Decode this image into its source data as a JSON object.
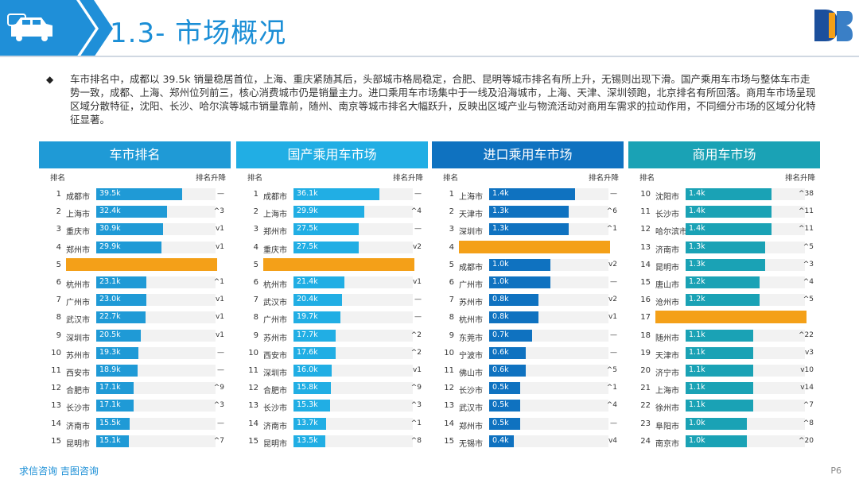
{
  "header": {
    "title": "1.3- 市场概况"
  },
  "summary": {
    "text": "车市排名中，成都以 39.5k 销量稳居首位，上海、重庆紧随其后，头部城市格局稳定，合肥、昆明等城市排名有所上升，无锡则出现下滑。国产乘用车市场与整体车市走势一致，成都、上海、郑州位列前三，核心消费城市仍是销量主力。进口乘用车市场集中于一线及沿海城市，上海、天津、深圳领跑，北京排名有所回落。商用车市场呈现区域分散特征，沈阳、长沙、哈尔滨等城市销量靠前，随州、南京等城市排名大幅跃升，反映出区域产业与物流活动对商用车需求的拉动作用，不同细分市场的区域分化特征显著。"
  },
  "panels": [
    {
      "title": "车市排名",
      "color": "#1f9ad6",
      "col_rank": "排名",
      "col_change": "排名升降",
      "rows": [
        {
          "rank": "1",
          "city": "成都市",
          "value": "39.5k",
          "v": 39.5,
          "change": "—"
        },
        {
          "rank": "2",
          "city": "上海市",
          "value": "32.4k",
          "v": 32.4,
          "change": "^3"
        },
        {
          "rank": "3",
          "city": "重庆市",
          "value": "30.9k",
          "v": 30.9,
          "change": "v1"
        },
        {
          "rank": "4",
          "city": "郑州市",
          "value": "29.9k",
          "v": 29.9,
          "change": "v1"
        },
        {
          "rank": "5",
          "highlight": true
        },
        {
          "rank": "6",
          "city": "杭州市",
          "value": "23.1k",
          "v": 23.1,
          "change": "^1"
        },
        {
          "rank": "7",
          "city": "广州市",
          "value": "23.0k",
          "v": 23.0,
          "change": "v1"
        },
        {
          "rank": "8",
          "city": "武汉市",
          "value": "22.7k",
          "v": 22.7,
          "change": "v1"
        },
        {
          "rank": "9",
          "city": "深圳市",
          "value": "20.5k",
          "v": 20.5,
          "change": "v1"
        },
        {
          "rank": "10",
          "city": "苏州市",
          "value": "19.3k",
          "v": 19.3,
          "change": "—"
        },
        {
          "rank": "11",
          "city": "西安市",
          "value": "18.9k",
          "v": 18.9,
          "change": "—"
        },
        {
          "rank": "12",
          "city": "合肥市",
          "value": "17.1k",
          "v": 17.1,
          "change": "^9"
        },
        {
          "rank": "13",
          "city": "长沙市",
          "value": "17.1k",
          "v": 17.1,
          "change": "^3"
        },
        {
          "rank": "14",
          "city": "济南市",
          "value": "15.5k",
          "v": 15.5,
          "change": "—"
        },
        {
          "rank": "15",
          "city": "昆明市",
          "value": "15.1k",
          "v": 15.1,
          "change": "^7"
        }
      ]
    },
    {
      "title": "国产乘用车市场",
      "color": "#21aee4",
      "col_rank": "排名",
      "col_change": "排名升降",
      "rows": [
        {
          "rank": "1",
          "city": "成都市",
          "value": "36.1k",
          "v": 36.1,
          "change": "—"
        },
        {
          "rank": "2",
          "city": "上海市",
          "value": "29.9k",
          "v": 29.9,
          "change": "^4"
        },
        {
          "rank": "3",
          "city": "郑州市",
          "value": "27.5k",
          "v": 27.5,
          "change": "—"
        },
        {
          "rank": "4",
          "city": "重庆市",
          "value": "27.5k",
          "v": 27.5,
          "change": "v2"
        },
        {
          "rank": "5",
          "highlight": true
        },
        {
          "rank": "6",
          "city": "杭州市",
          "value": "21.4k",
          "v": 21.4,
          "change": "v1"
        },
        {
          "rank": "7",
          "city": "武汉市",
          "value": "20.4k",
          "v": 20.4,
          "change": "—"
        },
        {
          "rank": "8",
          "city": "广州市",
          "value": "19.7k",
          "v": 19.7,
          "change": "—"
        },
        {
          "rank": "9",
          "city": "苏州市",
          "value": "17.7k",
          "v": 17.7,
          "change": "^2"
        },
        {
          "rank": "10",
          "city": "西安市",
          "value": "17.6k",
          "v": 17.6,
          "change": "^2"
        },
        {
          "rank": "11",
          "city": "深圳市",
          "value": "16.0k",
          "v": 16.0,
          "change": "v1"
        },
        {
          "rank": "12",
          "city": "合肥市",
          "value": "15.8k",
          "v": 15.8,
          "change": "^9"
        },
        {
          "rank": "13",
          "city": "长沙市",
          "value": "15.3k",
          "v": 15.3,
          "change": "^3"
        },
        {
          "rank": "14",
          "city": "济南市",
          "value": "13.7k",
          "v": 13.7,
          "change": "^1"
        },
        {
          "rank": "15",
          "city": "昆明市",
          "value": "13.5k",
          "v": 13.5,
          "change": "^8"
        }
      ]
    },
    {
      "title": "进口乘用车市场",
      "color": "#0f72c0",
      "col_rank": "排名",
      "col_change": "排名升降",
      "rows": [
        {
          "rank": "1",
          "city": "上海市",
          "value": "1.4k",
          "v": 1.4,
          "change": "—"
        },
        {
          "rank": "2",
          "city": "天津市",
          "value": "1.3k",
          "v": 1.3,
          "change": "^6"
        },
        {
          "rank": "3",
          "city": "深圳市",
          "value": "1.3k",
          "v": 1.3,
          "change": "^1"
        },
        {
          "rank": "4",
          "highlight": true
        },
        {
          "rank": "5",
          "city": "成都市",
          "value": "1.0k",
          "v": 1.0,
          "change": "v2"
        },
        {
          "rank": "6",
          "city": "广州市",
          "value": "1.0k",
          "v": 1.0,
          "change": "—"
        },
        {
          "rank": "7",
          "city": "苏州市",
          "value": "0.8k",
          "v": 0.8,
          "change": "v2"
        },
        {
          "rank": "8",
          "city": "杭州市",
          "value": "0.8k",
          "v": 0.8,
          "change": "v1"
        },
        {
          "rank": "9",
          "city": "东莞市",
          "value": "0.7k",
          "v": 0.7,
          "change": "—"
        },
        {
          "rank": "10",
          "city": "宁波市",
          "value": "0.6k",
          "v": 0.6,
          "change": "—"
        },
        {
          "rank": "11",
          "city": "佛山市",
          "value": "0.6k",
          "v": 0.6,
          "change": "^5"
        },
        {
          "rank": "12",
          "city": "长沙市",
          "value": "0.5k",
          "v": 0.5,
          "change": "^1"
        },
        {
          "rank": "13",
          "city": "武汉市",
          "value": "0.5k",
          "v": 0.5,
          "change": "^4"
        },
        {
          "rank": "14",
          "city": "郑州市",
          "value": "0.5k",
          "v": 0.5,
          "change": "—"
        },
        {
          "rank": "15",
          "city": "无锡市",
          "value": "0.4k",
          "v": 0.4,
          "change": "v4"
        }
      ]
    },
    {
      "title": "商用车市场",
      "color": "#1aa2b5",
      "col_rank": "排名",
      "col_change": "排名升降",
      "rows": [
        {
          "rank": "10",
          "city": "沈阳市",
          "value": "1.4k",
          "v": 1.4,
          "change": "^38"
        },
        {
          "rank": "11",
          "city": "长沙市",
          "value": "1.4k",
          "v": 1.4,
          "change": "^11"
        },
        {
          "rank": "12",
          "city": "哈尔滨市",
          "value": "1.4k",
          "v": 1.4,
          "change": "^11"
        },
        {
          "rank": "13",
          "city": "济南市",
          "value": "1.3k",
          "v": 1.3,
          "change": "^5"
        },
        {
          "rank": "14",
          "city": "昆明市",
          "value": "1.3k",
          "v": 1.3,
          "change": "^3"
        },
        {
          "rank": "15",
          "city": "唐山市",
          "value": "1.2k",
          "v": 1.2,
          "change": "^4"
        },
        {
          "rank": "16",
          "city": "沧州市",
          "value": "1.2k",
          "v": 1.2,
          "change": "^5"
        },
        {
          "rank": "17",
          "highlight": true
        },
        {
          "rank": "18",
          "city": "随州市",
          "value": "1.1k",
          "v": 1.1,
          "change": "^22"
        },
        {
          "rank": "19",
          "city": "天津市",
          "value": "1.1k",
          "v": 1.1,
          "change": "v3"
        },
        {
          "rank": "20",
          "city": "济宁市",
          "value": "1.1k",
          "v": 1.1,
          "change": "v10"
        },
        {
          "rank": "21",
          "city": "上海市",
          "value": "1.1k",
          "v": 1.1,
          "change": "v14"
        },
        {
          "rank": "22",
          "city": "徐州市",
          "value": "1.1k",
          "v": 1.1,
          "change": "^7"
        },
        {
          "rank": "23",
          "city": "阜阳市",
          "value": "1.0k",
          "v": 1.0,
          "change": "^8"
        },
        {
          "rank": "24",
          "city": "南京市",
          "value": "1.0k",
          "v": 1.0,
          "change": "^20"
        }
      ]
    }
  ],
  "footer": {
    "links": "求信咨询  吉图咨询",
    "page": "P6"
  },
  "colors": {
    "accent": "#1a8ed6",
    "highlight": "#f4a018"
  },
  "icons": [
    "car-icon",
    "brand-logo"
  ]
}
